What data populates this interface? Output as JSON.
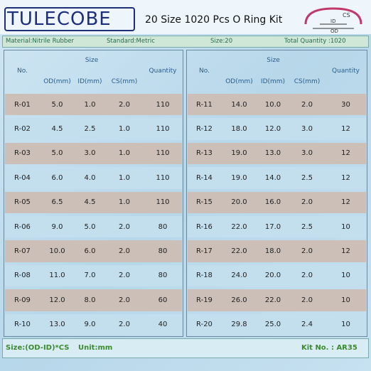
{
  "header": {
    "brand": "TULECOBE",
    "title": "20 Size 1020 Pcs O Ring Kit",
    "diagram": {
      "cs": "CS",
      "id": "ID",
      "od": "OD"
    }
  },
  "info": [
    "Material:Nitrile Rubber",
    "Standard:Metric",
    "Size:20",
    "Total Quantity :1020"
  ],
  "tables": [
    {
      "headers": {
        "no": "No.",
        "size": "Size",
        "od": "OD(mm)",
        "id": "ID(mm)",
        "cs": "CS(mm)",
        "quantity": "Quantity"
      },
      "rows": [
        [
          "R-01",
          "5.0",
          "1.0",
          "2.0",
          "110"
        ],
        [
          "R-02",
          "4.5",
          "2.5",
          "1.0",
          "110"
        ],
        [
          "R-03",
          "5.0",
          "3.0",
          "1.0",
          "110"
        ],
        [
          "R-04",
          "6.0",
          "4.0",
          "1.0",
          "110"
        ],
        [
          "R-05",
          "6.5",
          "4.5",
          "1.0",
          "110"
        ],
        [
          "R-06",
          "9.0",
          "5.0",
          "2.0",
          "80"
        ],
        [
          "R-07",
          "10.0",
          "6.0",
          "2.0",
          "80"
        ],
        [
          "R-08",
          "11.0",
          "7.0",
          "2.0",
          "80"
        ],
        [
          "R-09",
          "12.0",
          "8.0",
          "2.0",
          "60"
        ],
        [
          "R-10",
          "13.0",
          "9.0",
          "2.0",
          "40"
        ]
      ]
    },
    {
      "headers": {
        "no": "No.",
        "size": "Size",
        "od": "OD(mm)",
        "id": "ID(mm)",
        "cs": "CS(mm)",
        "quantity": "Quantity"
      },
      "rows": [
        [
          "R-11",
          "14.0",
          "10.0",
          "2.0",
          "30"
        ],
        [
          "R-12",
          "18.0",
          "12.0",
          "3.0",
          "12"
        ],
        [
          "R-13",
          "19.0",
          "13.0",
          "3.0",
          "12"
        ],
        [
          "R-14",
          "19.0",
          "14.0",
          "2.5",
          "12"
        ],
        [
          "R-15",
          "20.0",
          "16.0",
          "2.0",
          "12"
        ],
        [
          "R-16",
          "22.0",
          "17.0",
          "2.5",
          "10"
        ],
        [
          "R-17",
          "22.0",
          "18.0",
          "2.0",
          "12"
        ],
        [
          "R-18",
          "24.0",
          "20.0",
          "2.0",
          "10"
        ],
        [
          "R-19",
          "26.0",
          "22.0",
          "2.0",
          "10"
        ],
        [
          "R-20",
          "29.8",
          "25.0",
          "2.4",
          "10"
        ]
      ]
    }
  ],
  "footer": {
    "formula": "Size:(OD-ID)*CS",
    "unit": "Unit:mm",
    "kit": "Kit No. : AR35"
  }
}
